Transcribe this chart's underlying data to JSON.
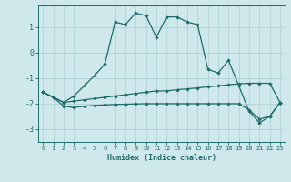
{
  "xlabel": "Humidex (Indice chaleur)",
  "background_color": "#cfe8ec",
  "grid_color": "#aacdd4",
  "line_color": "#1e6b6b",
  "xlim": [
    -0.5,
    23.5
  ],
  "ylim": [
    -3.5,
    1.85
  ],
  "yticks": [
    -3,
    -2,
    -1,
    0,
    1
  ],
  "xticks": [
    0,
    1,
    2,
    3,
    4,
    5,
    6,
    7,
    8,
    9,
    10,
    11,
    12,
    13,
    14,
    15,
    16,
    17,
    18,
    19,
    20,
    21,
    22,
    23
  ],
  "series_main_x": [
    0,
    1,
    2,
    3,
    4,
    5,
    6,
    7,
    8,
    9,
    10,
    11,
    12,
    13,
    14,
    15,
    16,
    17,
    18,
    19,
    20,
    21,
    22,
    23
  ],
  "series_main_y": [
    -1.55,
    -1.75,
    -1.95,
    -1.7,
    -1.3,
    -0.9,
    -0.45,
    1.2,
    1.1,
    1.55,
    1.45,
    0.6,
    1.4,
    1.4,
    1.2,
    1.1,
    -0.65,
    -0.8,
    -0.3,
    -1.3,
    -2.3,
    -2.75,
    -2.5,
    -1.95
  ],
  "series_upper_x": [
    0,
    1,
    2,
    3,
    4,
    5,
    6,
    7,
    8,
    9,
    10,
    11,
    12,
    13,
    14,
    15,
    16,
    17,
    18,
    19,
    20,
    21,
    22,
    23
  ],
  "series_upper_y": [
    -1.55,
    -1.75,
    -1.95,
    -1.9,
    -1.85,
    -1.8,
    -1.75,
    -1.7,
    -1.65,
    -1.6,
    -1.55,
    -1.5,
    -1.5,
    -1.45,
    -1.42,
    -1.38,
    -1.34,
    -1.3,
    -1.26,
    -1.22,
    -1.2,
    -1.2,
    -1.2,
    -1.95
  ],
  "series_lower_x": [
    0,
    1,
    2,
    3,
    4,
    5,
    6,
    7,
    8,
    9,
    10,
    11,
    12,
    13,
    14,
    15,
    16,
    17,
    18,
    19,
    20,
    21,
    22,
    23
  ],
  "series_lower_y": [
    -1.55,
    -1.75,
    -2.1,
    -2.15,
    -2.1,
    -2.07,
    -2.05,
    -2.03,
    -2.02,
    -2.01,
    -2.0,
    -2.0,
    -2.0,
    -2.0,
    -2.0,
    -2.0,
    -2.0,
    -2.0,
    -2.0,
    -2.0,
    -2.25,
    -2.6,
    -2.5,
    -1.95
  ]
}
